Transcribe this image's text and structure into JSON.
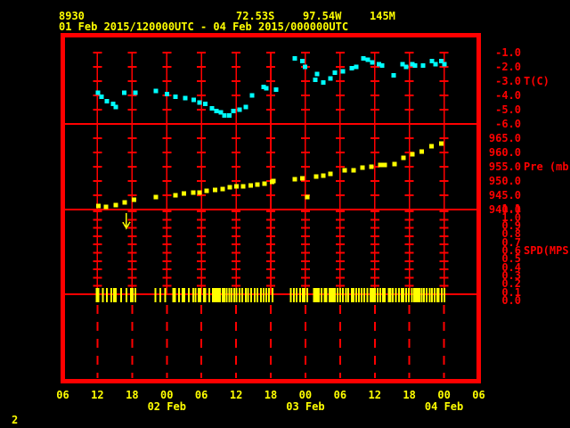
{
  "header": {
    "station_id": "8930",
    "latitude": "72.53S",
    "longitude": "97.54W",
    "elevation": "145M",
    "period": "01 Feb 2015/120000UTC - 04 Feb 2015/000000UTC"
  },
  "footer": {
    "page_number": "2"
  },
  "colors": {
    "background": "#000000",
    "grid": "#ff0000",
    "axis_text": "#ff0000",
    "header_text": "#ffff00",
    "temperature_series": "#00ffff",
    "pressure_series": "#ffff00",
    "wind_ticks": "#ffff00"
  },
  "chart_data": {
    "type": "scatter",
    "title": "",
    "x_axis": {
      "start": "01 Feb 2015 06:00 UTC",
      "end": "04 Feb 2015 06:00 UTC",
      "span_hours": 72,
      "gridline_interval_hours": 6,
      "hour_ticks": {
        "hours": [
          0,
          6,
          12,
          18,
          24,
          30,
          36,
          42,
          48,
          54,
          60,
          66,
          72
        ],
        "labels": [
          "06",
          "12",
          "18",
          "00",
          "06",
          "12",
          "18",
          "00",
          "06",
          "12",
          "18",
          "00",
          "06"
        ]
      },
      "date_labels": [
        {
          "label": "02 Feb",
          "hour": 18
        },
        {
          "label": "03 Feb",
          "hour": 42
        },
        {
          "label": "04 Feb",
          "hour": 66
        }
      ]
    },
    "panels": [
      {
        "id": "temperature",
        "unit_label": "T(C)",
        "unit_label_anchor": -3.0,
        "axis": {
          "min": -6.0,
          "max": 0.0,
          "tick_values": [
            -1.0,
            -2.0,
            -3.0,
            -4.0,
            -5.0,
            -6.0
          ],
          "tick_labels": [
            "-1.0",
            "-2.0",
            "-3.0",
            "-4.0",
            "-5.0",
            "-6.0"
          ]
        },
        "series": {
          "name": "temperature",
          "marker": "square",
          "points": [
            [
              6.1,
              -3.8
            ],
            [
              6.7,
              -4.1
            ],
            [
              7.6,
              -4.4
            ],
            [
              8.7,
              -4.6
            ],
            [
              9.2,
              -4.8
            ],
            [
              10.6,
              -3.8
            ],
            [
              12.6,
              -3.8
            ],
            [
              16.1,
              -3.7
            ],
            [
              18.0,
              -3.9
            ],
            [
              19.5,
              -4.1
            ],
            [
              21.2,
              -4.2
            ],
            [
              22.7,
              -4.3
            ],
            [
              23.7,
              -4.5
            ],
            [
              24.7,
              -4.6
            ],
            [
              25.8,
              -4.9
            ],
            [
              26.6,
              -5.1
            ],
            [
              27.4,
              -5.2
            ],
            [
              28.0,
              -5.4
            ],
            [
              28.8,
              -5.4
            ],
            [
              29.5,
              -5.1
            ],
            [
              30.6,
              -5.0
            ],
            [
              31.7,
              -4.8
            ],
            [
              32.8,
              -4.0
            ],
            [
              34.8,
              -3.4
            ],
            [
              35.2,
              -3.5
            ],
            [
              36.9,
              -3.6
            ],
            [
              40.2,
              -1.4
            ],
            [
              41.5,
              -1.6
            ],
            [
              41.9,
              -2.0
            ],
            [
              43.7,
              -2.9
            ],
            [
              44.0,
              -2.5
            ],
            [
              45.1,
              -3.1
            ],
            [
              46.3,
              -2.8
            ],
            [
              47.1,
              -2.4
            ],
            [
              48.5,
              -2.3
            ],
            [
              50.0,
              -2.1
            ],
            [
              50.8,
              -2.0
            ],
            [
              52.0,
              -1.4
            ],
            [
              52.8,
              -1.5
            ],
            [
              53.6,
              -1.7
            ],
            [
              54.7,
              -1.8
            ],
            [
              55.3,
              -1.9
            ],
            [
              57.3,
              -2.6
            ],
            [
              58.8,
              -1.8
            ],
            [
              59.4,
              -2.0
            ],
            [
              60.5,
              -1.8
            ],
            [
              61.0,
              -1.9
            ],
            [
              62.4,
              -1.9
            ],
            [
              63.9,
              -1.6
            ],
            [
              64.5,
              -1.8
            ],
            [
              65.5,
              -1.6
            ],
            [
              66.1,
              -1.8
            ]
          ]
        }
      },
      {
        "id": "pressure",
        "unit_label": "Pre (mb)",
        "unit_label_anchor": 955.0,
        "axis": {
          "min": 940.0,
          "max": 970.0,
          "tick_values": [
            965.0,
            960.0,
            955.0,
            950.0,
            945.0,
            940.0
          ],
          "tick_labels": [
            "965.0",
            "960.0",
            "955.0",
            "950.0",
            "945.0",
            "940.0"
          ]
        },
        "series": {
          "name": "pressure",
          "marker": "square",
          "points": [
            [
              6.2,
              941.3
            ],
            [
              7.5,
              940.9
            ],
            [
              9.2,
              941.6
            ],
            [
              10.7,
              942.5
            ],
            [
              12.3,
              943.4
            ],
            [
              16.1,
              944.4
            ],
            [
              19.5,
              945.0
            ],
            [
              21.0,
              945.6
            ],
            [
              22.6,
              945.9
            ],
            [
              23.7,
              945.9
            ],
            [
              24.9,
              946.6
            ],
            [
              26.4,
              946.9
            ],
            [
              27.7,
              947.2
            ],
            [
              28.9,
              947.8
            ],
            [
              30.1,
              948.1
            ],
            [
              31.2,
              948.1
            ],
            [
              32.5,
              948.4
            ],
            [
              33.7,
              948.8
            ],
            [
              34.9,
              949.1
            ],
            [
              36.2,
              949.7
            ],
            [
              36.5,
              950.0
            ],
            [
              40.2,
              950.6
            ],
            [
              41.5,
              950.9
            ],
            [
              42.3,
              944.4
            ],
            [
              43.9,
              951.6
            ],
            [
              45.1,
              951.9
            ],
            [
              46.3,
              952.5
            ],
            [
              48.8,
              953.8
            ],
            [
              50.3,
              953.8
            ],
            [
              51.9,
              954.7
            ],
            [
              53.4,
              955.0
            ],
            [
              55.0,
              955.6
            ],
            [
              55.7,
              955.6
            ],
            [
              57.4,
              955.9
            ],
            [
              59.0,
              958.1
            ],
            [
              60.5,
              959.4
            ],
            [
              62.1,
              960.3
            ],
            [
              63.8,
              962.2
            ],
            [
              65.5,
              963.1
            ]
          ]
        }
      },
      {
        "id": "wind_speed",
        "unit_label": "SPD(MPS)",
        "unit_label_anchor": 0.6,
        "axis": {
          "min": 0.0,
          "max": 1.0,
          "tick_values": [
            1.1,
            1.0,
            0.9,
            0.8,
            0.7,
            0.6,
            0.5,
            0.4,
            0.3,
            0.2,
            0.1,
            0.0
          ],
          "tick_labels": [
            "1.1",
            "1.0",
            "0.9",
            "0.8",
            "0.7",
            "0.6",
            "0.5",
            "0.4",
            "0.3",
            "0.2",
            "0.1",
            "0.0"
          ]
        },
        "approx_value_mps": 0.0,
        "data_tick_hours": [
          6.0,
          6.9,
          7.6,
          8.4,
          9.0,
          10.1,
          11.0,
          11.8,
          12.1,
          12.6,
          16.0,
          16.9,
          17.7,
          19.3,
          20.1,
          20.9,
          21.8,
          22.6,
          23.0,
          23.7,
          24.4,
          24.7,
          25.4,
          26.0,
          26.3,
          26.6,
          26.9,
          27.2,
          27.7,
          28.0,
          28.4,
          28.8,
          29.2,
          29.7,
          30.1,
          30.6,
          31.1,
          31.7,
          32.1,
          32.6,
          33.2,
          33.7,
          34.3,
          34.8,
          35.2,
          35.7,
          36.3,
          39.5,
          40.0,
          40.5,
          41.1,
          41.7,
          42.3,
          43.6,
          44.0,
          44.3,
          44.8,
          45.3,
          45.6,
          46.2,
          46.6,
          47.1,
          47.6,
          48.0,
          48.5,
          49.0,
          49.4,
          50.0,
          50.3,
          50.8,
          51.3,
          51.7,
          52.2,
          52.7,
          53.3,
          53.6,
          54.0,
          54.5,
          55.0,
          55.4,
          55.7,
          56.4,
          56.7,
          57.1,
          57.7,
          58.2,
          58.7,
          59.0,
          59.4,
          59.9,
          60.4,
          60.8,
          61.1,
          61.6,
          62.1,
          62.5,
          63.0,
          63.5,
          63.9,
          64.4,
          64.8,
          65.1,
          65.6,
          66.1
        ],
        "thick_tick_hours": [
          6.0,
          9.0,
          19.3,
          20.9,
          23.7,
          41.7,
          43.6,
          46.6,
          53.6,
          61.6
        ],
        "arrow_marker": {
          "hour": 11.0,
          "direction": "down"
        }
      }
    ]
  }
}
